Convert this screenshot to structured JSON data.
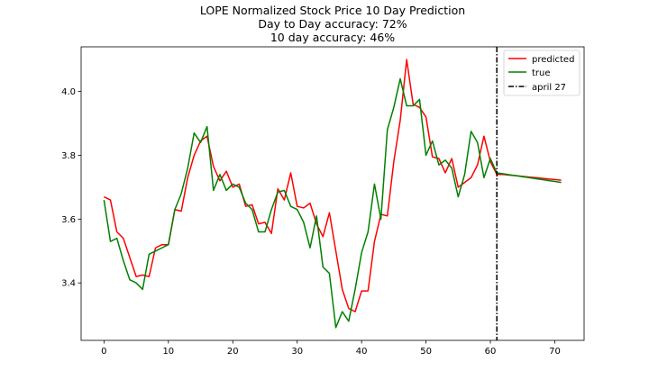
{
  "chart_data": {
    "type": "line",
    "title": "LOPE Normalized Stock Price 10 Day Prediction",
    "subtitle_lines": [
      "Day to Day accuracy: 72%",
      "10 day accuracy: 46%"
    ],
    "xlabel": "",
    "ylabel": "",
    "xlim": [
      -3.55,
      74.55
    ],
    "ylim": [
      3.22,
      4.14
    ],
    "xticks": [
      0,
      10,
      20,
      30,
      40,
      50,
      60,
      70
    ],
    "yticks": [
      3.4,
      3.6,
      3.8,
      4.0
    ],
    "xtick_labels": [
      "0",
      "10",
      "20",
      "30",
      "40",
      "50",
      "60",
      "70"
    ],
    "ytick_labels": [
      "3.4",
      "3.6",
      "3.8",
      "4.0"
    ],
    "grid": false,
    "legend_position": "upper right",
    "series": [
      {
        "name": "predicted",
        "color": "#ff0000",
        "x": [
          0,
          1,
          2,
          3,
          4,
          5,
          6,
          7,
          8,
          9,
          10,
          11,
          12,
          13,
          14,
          15,
          16,
          17,
          18,
          19,
          20,
          21,
          22,
          23,
          24,
          25,
          26,
          27,
          28,
          29,
          30,
          31,
          32,
          33,
          34,
          35,
          36,
          37,
          38,
          39,
          40,
          41,
          42,
          43,
          44,
          45,
          46,
          47,
          48,
          49,
          50,
          51,
          52,
          53,
          54,
          55,
          56,
          57,
          58,
          59,
          60,
          61,
          62,
          63,
          64,
          65,
          66,
          67,
          68,
          69,
          70,
          71
        ],
        "y": [
          3.67,
          3.66,
          3.56,
          3.54,
          3.48,
          3.42,
          3.425,
          3.42,
          3.51,
          3.52,
          3.52,
          3.63,
          3.625,
          3.73,
          3.8,
          3.845,
          3.86,
          3.765,
          3.72,
          3.75,
          3.7,
          3.71,
          3.64,
          3.645,
          3.585,
          3.59,
          3.555,
          3.695,
          3.66,
          3.745,
          3.64,
          3.635,
          3.65,
          3.585,
          3.545,
          3.62,
          3.5,
          3.38,
          3.32,
          3.31,
          3.375,
          3.375,
          3.53,
          3.615,
          3.61,
          3.78,
          3.91,
          4.1,
          3.96,
          3.95,
          3.92,
          3.795,
          3.79,
          3.745,
          3.79,
          3.7,
          3.715,
          3.73,
          3.77,
          3.86,
          3.78,
          3.74,
          3.74,
          3.738,
          3.736,
          3.734,
          3.732,
          3.73,
          3.728,
          3.726,
          3.724,
          3.722
        ]
      },
      {
        "name": "true",
        "color": "#008000",
        "x": [
          0,
          1,
          2,
          3,
          4,
          5,
          6,
          7,
          8,
          9,
          10,
          11,
          12,
          13,
          14,
          15,
          16,
          17,
          18,
          19,
          20,
          21,
          22,
          23,
          24,
          25,
          26,
          27,
          28,
          29,
          30,
          31,
          32,
          33,
          34,
          35,
          36,
          37,
          38,
          39,
          40,
          41,
          42,
          43,
          44,
          45,
          46,
          47,
          48,
          49,
          50,
          51,
          52,
          53,
          54,
          55,
          56,
          57,
          58,
          59,
          60,
          61,
          62,
          63,
          64,
          65,
          66,
          67,
          68,
          69,
          70,
          71
        ],
        "y": [
          3.66,
          3.53,
          3.54,
          3.47,
          3.41,
          3.4,
          3.38,
          3.49,
          3.5,
          3.51,
          3.52,
          3.63,
          3.68,
          3.76,
          3.87,
          3.84,
          3.89,
          3.69,
          3.74,
          3.69,
          3.71,
          3.7,
          3.65,
          3.63,
          3.56,
          3.56,
          3.63,
          3.685,
          3.69,
          3.64,
          3.63,
          3.59,
          3.51,
          3.61,
          3.45,
          3.43,
          3.26,
          3.31,
          3.28,
          3.38,
          3.495,
          3.56,
          3.71,
          3.6,
          3.88,
          3.95,
          4.04,
          3.955,
          3.955,
          3.975,
          3.8,
          3.845,
          3.77,
          3.785,
          3.76,
          3.67,
          3.74,
          3.875,
          3.84,
          3.73,
          3.79,
          3.745,
          3.742,
          3.739,
          3.736,
          3.733,
          3.73,
          3.727,
          3.724,
          3.721,
          3.718,
          3.715
        ]
      }
    ],
    "vline": {
      "name": "april 27",
      "x": 61,
      "color": "#000000",
      "style": "dash-dot"
    }
  }
}
